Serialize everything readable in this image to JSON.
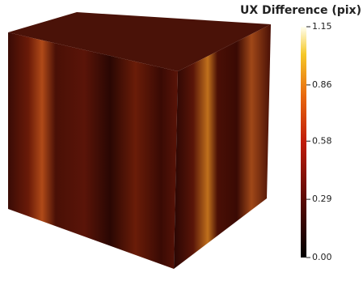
{
  "colorbar": {
    "title": "UX Difference (pix)",
    "range": [
      0,
      1.15
    ],
    "ticks": [
      {
        "value": 0,
        "label": "0.00"
      },
      {
        "value": 0.29,
        "label": "0.29"
      },
      {
        "value": 0.58,
        "label": "0.58"
      },
      {
        "value": 0.86,
        "label": "0.86"
      },
      {
        "value": 1.15,
        "label": "1.15"
      }
    ]
  }
}
